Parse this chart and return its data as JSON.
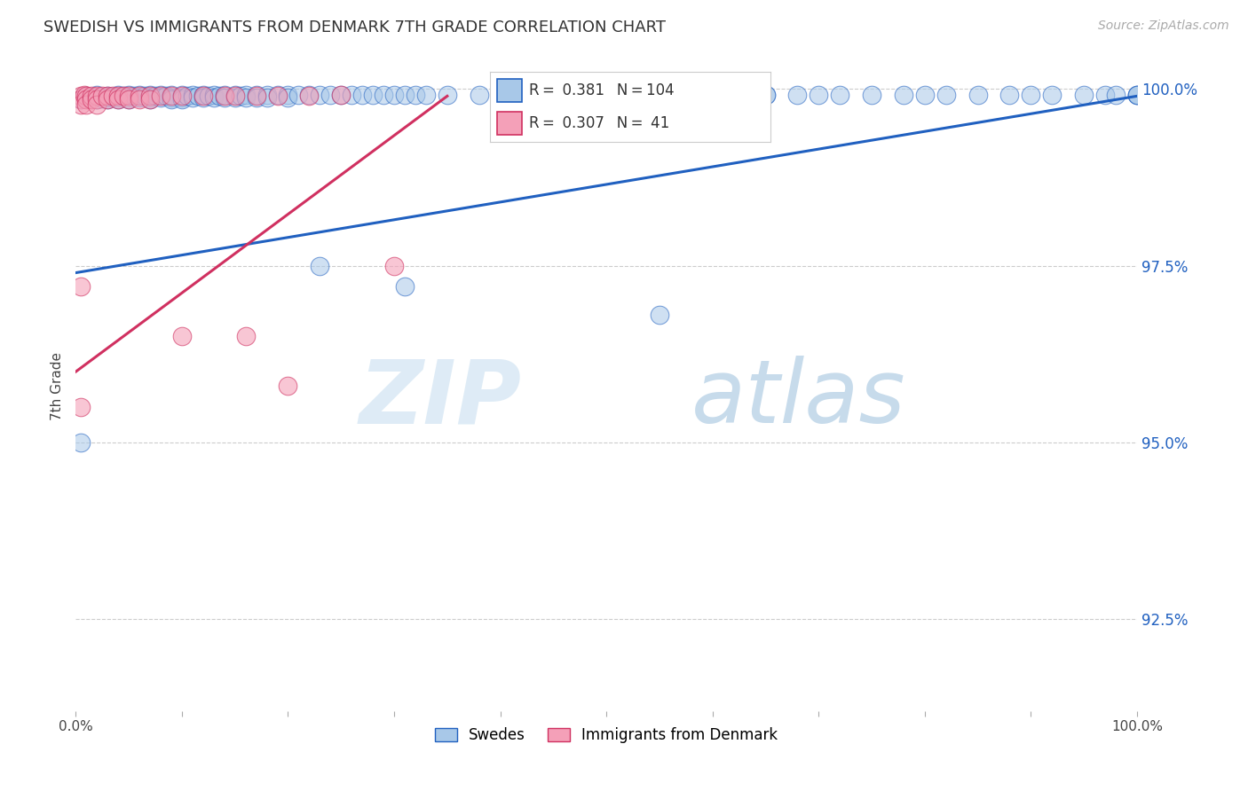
{
  "title": "SWEDISH VS IMMIGRANTS FROM DENMARK 7TH GRADE CORRELATION CHART",
  "source": "Source: ZipAtlas.com",
  "ylabel": "7th Grade",
  "legend_label_blue": "Swedes",
  "legend_label_pink": "Immigrants from Denmark",
  "r_blue": 0.381,
  "n_blue": 104,
  "r_pink": 0.307,
  "n_pink": 41,
  "color_blue": "#A8C8E8",
  "color_pink": "#F4A0B8",
  "line_color_blue": "#2060C0",
  "line_color_pink": "#D03060",
  "watermark_zip": "ZIP",
  "watermark_atlas": "atlas",
  "xlim": [
    0.0,
    1.0
  ],
  "ylim": [
    0.912,
    1.004
  ],
  "yticks": [
    0.925,
    0.95,
    0.975,
    1.0
  ],
  "ytick_labels": [
    "92.5%",
    "95.0%",
    "97.5%",
    "100.0%"
  ],
  "blue_x": [
    0.005,
    0.01,
    0.015,
    0.02,
    0.02,
    0.025,
    0.03,
    0.03,
    0.03,
    0.035,
    0.04,
    0.04,
    0.04,
    0.045,
    0.05,
    0.05,
    0.05,
    0.055,
    0.06,
    0.06,
    0.065,
    0.07,
    0.07,
    0.07,
    0.075,
    0.08,
    0.08,
    0.085,
    0.09,
    0.09,
    0.09,
    0.1,
    0.1,
    0.1,
    0.105,
    0.11,
    0.11,
    0.115,
    0.12,
    0.12,
    0.125,
    0.13,
    0.13,
    0.135,
    0.14,
    0.14,
    0.15,
    0.15,
    0.155,
    0.16,
    0.16,
    0.17,
    0.17,
    0.18,
    0.18,
    0.19,
    0.2,
    0.2,
    0.21,
    0.22,
    0.23,
    0.24,
    0.25,
    0.26,
    0.27,
    0.28,
    0.29,
    0.3,
    0.31,
    0.32,
    0.33,
    0.35,
    0.38,
    0.4,
    0.42,
    0.45,
    0.47,
    0.5,
    0.55,
    0.58,
    0.6,
    0.65,
    0.7,
    0.75,
    0.8,
    0.85,
    0.9,
    0.95,
    0.97,
    1.0,
    0.005,
    0.23,
    0.31,
    0.55,
    0.65,
    0.68,
    0.72,
    0.78,
    0.82,
    0.88,
    0.92,
    0.98,
    1.0,
    1.0
  ],
  "blue_y": [
    0.9985,
    0.999,
    0.9988,
    0.9992,
    0.9985,
    0.9987,
    0.999,
    0.9988,
    0.9985,
    0.9989,
    0.9992,
    0.9988,
    0.9985,
    0.999,
    0.9992,
    0.9988,
    0.9985,
    0.999,
    0.9992,
    0.9988,
    0.999,
    0.9992,
    0.9988,
    0.9985,
    0.999,
    0.9992,
    0.9988,
    0.999,
    0.9992,
    0.9988,
    0.9985,
    0.9992,
    0.9988,
    0.9985,
    0.999,
    0.9992,
    0.9988,
    0.999,
    0.9992,
    0.9988,
    0.999,
    0.9992,
    0.9988,
    0.999,
    0.9992,
    0.9988,
    0.9992,
    0.9988,
    0.999,
    0.9992,
    0.9988,
    0.9992,
    0.9988,
    0.9992,
    0.9988,
    0.9992,
    0.9992,
    0.9988,
    0.9992,
    0.9992,
    0.9992,
    0.9992,
    0.9992,
    0.9992,
    0.9992,
    0.9992,
    0.9992,
    0.9992,
    0.9992,
    0.9992,
    0.9992,
    0.9992,
    0.9992,
    0.9992,
    0.9992,
    0.9992,
    0.9992,
    0.9992,
    0.9992,
    0.9992,
    0.9992,
    0.9992,
    0.9992,
    0.9992,
    0.9992,
    0.9992,
    0.9992,
    0.9992,
    0.9992,
    0.9992,
    0.95,
    0.975,
    0.972,
    0.968,
    0.9992,
    0.9992,
    0.9992,
    0.9992,
    0.9992,
    0.9992,
    0.9992,
    0.9992,
    0.9992,
    0.9992
  ],
  "pink_x": [
    0.005,
    0.005,
    0.005,
    0.008,
    0.01,
    0.01,
    0.01,
    0.015,
    0.015,
    0.02,
    0.02,
    0.02,
    0.025,
    0.03,
    0.03,
    0.035,
    0.04,
    0.04,
    0.045,
    0.05,
    0.05,
    0.06,
    0.06,
    0.07,
    0.07,
    0.08,
    0.09,
    0.1,
    0.12,
    0.14,
    0.15,
    0.17,
    0.19,
    0.22,
    0.005,
    0.16,
    0.25,
    0.3,
    0.005,
    0.1,
    0.2
  ],
  "pink_y": [
    0.999,
    0.9985,
    0.9978,
    0.9992,
    0.999,
    0.9985,
    0.9978,
    0.999,
    0.9985,
    0.999,
    0.9985,
    0.9978,
    0.999,
    0.999,
    0.9985,
    0.999,
    0.999,
    0.9985,
    0.999,
    0.999,
    0.9985,
    0.999,
    0.9985,
    0.999,
    0.9985,
    0.999,
    0.999,
    0.999,
    0.999,
    0.999,
    0.999,
    0.999,
    0.999,
    0.999,
    0.955,
    0.965,
    0.9992,
    0.975,
    0.972,
    0.965,
    0.958
  ],
  "blue_trend_x": [
    0.0,
    1.0
  ],
  "blue_trend_y": [
    0.974,
    0.999
  ],
  "pink_trend_x": [
    0.0,
    0.35
  ],
  "pink_trend_y": [
    0.96,
    0.999
  ]
}
